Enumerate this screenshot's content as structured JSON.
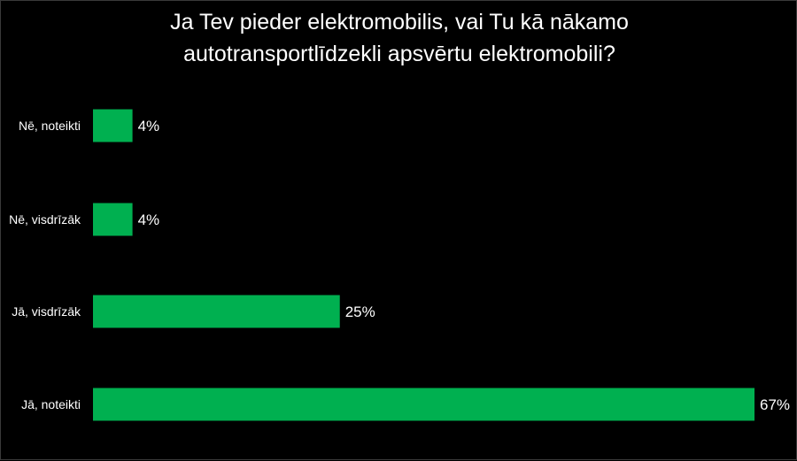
{
  "chart_data": {
    "type": "bar",
    "orientation": "horizontal",
    "title_lines": [
      "Ja Tev pieder elektromobilis, vai Tu kā nākamo",
      "autotransportlīdzekli apsvērtu elektromobili?"
    ],
    "categories": [
      "Nē, noteikti",
      "Nē, visdrīzāk",
      "Jā, visdrīzāk",
      "Jā, noteikti"
    ],
    "values": [
      4,
      4,
      25,
      67
    ],
    "value_labels": [
      "4%",
      "4%",
      "25%",
      "67%"
    ],
    "unit": "%",
    "xlim": [
      0,
      67
    ],
    "grid": false,
    "legend": "none",
    "bar_color": "#00b050",
    "background_color": "#000000",
    "text_color": "#ffffff"
  }
}
